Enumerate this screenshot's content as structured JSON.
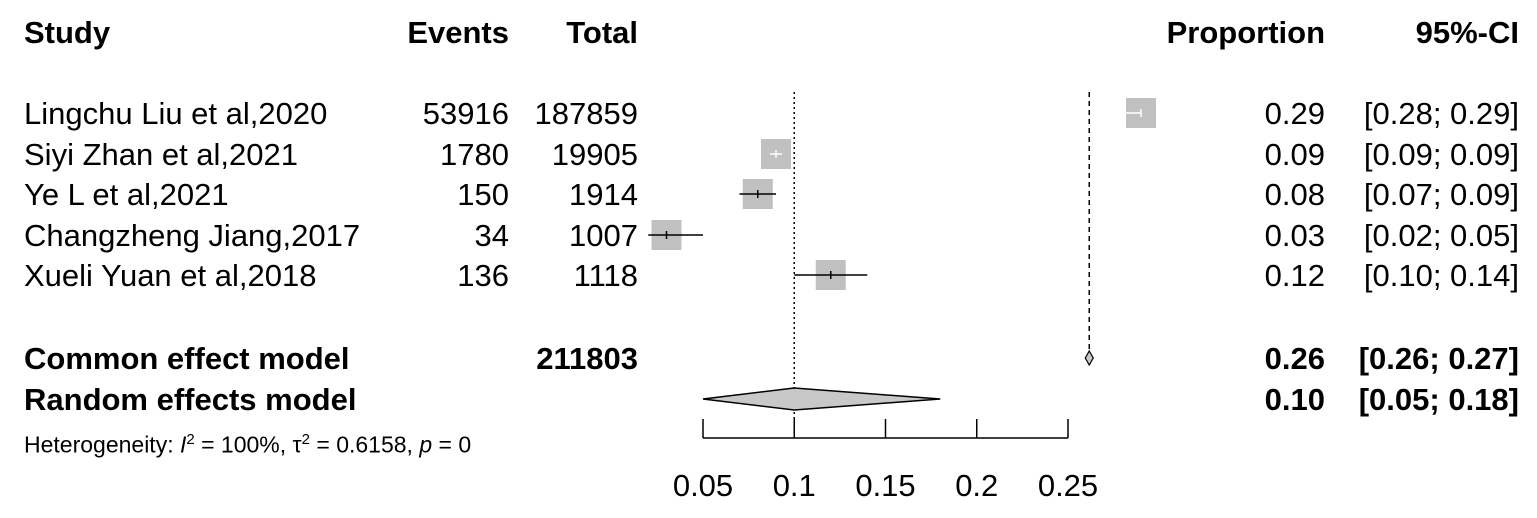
{
  "headers": {
    "study": "Study",
    "events": "Events",
    "total": "Total",
    "proportion": "Proportion",
    "ci": "95%-CI"
  },
  "studies": [
    {
      "name": "Lingchu Liu et al,2020",
      "events": "53916",
      "total": "187859",
      "prop_text": "0.29",
      "ci_text": "[0.28; 0.29]"
    },
    {
      "name": "Siyi Zhan et al,2021",
      "events": "1780",
      "total": "19905",
      "prop_text": "0.09",
      "ci_text": "[0.09; 0.09]"
    },
    {
      "name": "Ye L et al,2021",
      "events": "150",
      "total": "1914",
      "prop_text": "0.08",
      "ci_text": "[0.07; 0.09]"
    },
    {
      "name": "Changzheng Jiang,2017",
      "events": "34",
      "total": "1007",
      "prop_text": "0.03",
      "ci_text": "[0.02; 0.05]"
    },
    {
      "name": "Xueli Yuan et al,2018",
      "events": "136",
      "total": "1118",
      "prop_text": "0.12",
      "ci_text": "[0.10; 0.14]"
    }
  ],
  "common": {
    "label": "Common effect model",
    "total": "211803",
    "prop_text": "0.26",
    "ci_text": "[0.26; 0.27]"
  },
  "random": {
    "label": "Random effects model",
    "prop_text": "0.10",
    "ci_text": "[0.05; 0.18]"
  },
  "heterogeneity": {
    "prefix": "Heterogeneity: ",
    "I": "I",
    "I_sup": "2",
    "I_rest": " = 100%, ",
    "tau": "τ",
    "tau_sup": "2",
    "tau_rest": " = 0.6158, ",
    "p": "p",
    "p_rest": " = 0"
  },
  "chart_data": {
    "type": "forest",
    "x_ticks": [
      "0.05",
      "0.1",
      "0.15",
      "0.2",
      "0.25"
    ],
    "x_tick_values": [
      0.05,
      0.1,
      0.15,
      0.2,
      0.25
    ],
    "xlim": [
      0.05,
      0.25
    ],
    "studies": [
      {
        "prop": 0.29,
        "lower": 0.28,
        "upper": 0.29,
        "weight": 1.0
      },
      {
        "prop": 0.09,
        "lower": 0.09,
        "upper": 0.09,
        "weight": 1.0
      },
      {
        "prop": 0.08,
        "lower": 0.07,
        "upper": 0.09,
        "weight": 1.0
      },
      {
        "prop": 0.03,
        "lower": 0.02,
        "upper": 0.05,
        "weight": 1.0
      },
      {
        "prop": 0.12,
        "lower": 0.1,
        "upper": 0.14,
        "weight": 1.0
      }
    ],
    "common": {
      "prop": 0.26,
      "lower": 0.26,
      "upper": 0.27
    },
    "random": {
      "prop": 0.1,
      "lower": 0.05,
      "upper": 0.18
    },
    "colors": {
      "box": "#c0c0c0",
      "diamond": "#c8c8c8",
      "line": "#000000"
    }
  }
}
